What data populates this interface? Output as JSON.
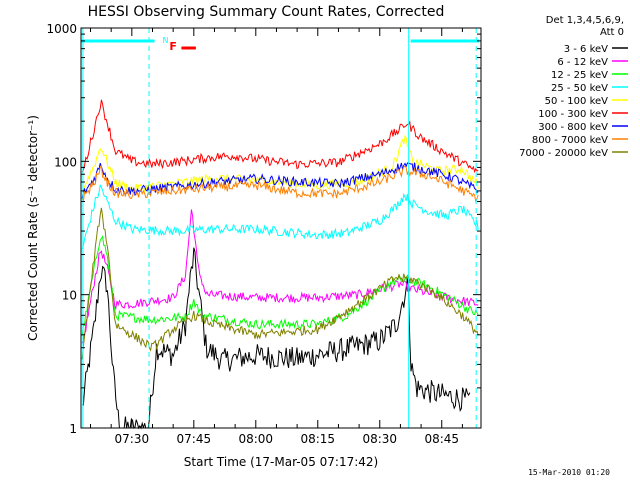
{
  "chart_data": {
    "type": "line",
    "title": "HESSI Observing Summary Count Rates, Corrected",
    "xlabel": "Start Time (17-Mar-05 07:17:42)",
    "ylabel": "Corrected Count Rate (s⁻¹ detector⁻¹)",
    "y_scale": "log",
    "ylim": [
      1,
      1000
    ],
    "xlim": [
      "07:17:42",
      "08:54:30"
    ],
    "x_ticks": [
      "07:30",
      "07:45",
      "08:00",
      "08:15",
      "08:30",
      "08:45"
    ],
    "y_ticks": [
      "1",
      "10",
      "100",
      "1000"
    ],
    "legend_header": [
      "Det 1,3,4,5,6,9,",
      "Att 0"
    ],
    "legend_position": "top-right, outside plot",
    "flags": [
      {
        "label": "N",
        "color": "#00ffff",
        "intervals": [
          [
            "07:17:42",
            "07:35:30"
          ],
          [
            "08:37:30",
            "08:54:00"
          ]
        ]
      },
      {
        "label": "F",
        "color": "#ff0000",
        "intervals": [
          [
            "07:42:00",
            "07:45:30"
          ]
        ]
      }
    ],
    "vertical_markers": [
      {
        "time": "07:18:10",
        "style": "solid",
        "color": "#00ffff"
      },
      {
        "time": "07:34:10",
        "style": "dashed",
        "color": "#00ffff"
      },
      {
        "time": "08:37:00",
        "style": "solid",
        "color": "#00ffff"
      },
      {
        "time": "08:53:20",
        "style": "dashed",
        "color": "#00ffff"
      }
    ],
    "series": [
      {
        "name": "3 - 6 keV",
        "color": "#000000",
        "points": [
          [
            "07:18:00",
            1.4
          ],
          [
            "07:21:00",
            6
          ],
          [
            "07:22:30",
            15.5
          ],
          [
            "07:24:00",
            12
          ],
          [
            "07:25:30",
            2.5
          ],
          [
            "07:27:00",
            1
          ],
          [
            "07:34:00",
            1
          ],
          [
            "07:36:00",
            4
          ],
          [
            "07:40:00",
            3.5
          ],
          [
            "07:43:00",
            6
          ],
          [
            "07:44:00",
            12
          ],
          [
            "07:45:00",
            20
          ],
          [
            "07:46:30",
            9
          ],
          [
            "07:48:00",
            4
          ],
          [
            "07:52:00",
            3.2
          ],
          [
            "08:00:00",
            3.5
          ],
          [
            "08:10:00",
            3.3
          ],
          [
            "08:20:00",
            3.8
          ],
          [
            "08:30:00",
            4.5
          ],
          [
            "08:34:00",
            6
          ],
          [
            "08:36:00",
            10
          ],
          [
            "08:37:00",
            12
          ],
          [
            "08:37:30",
            3
          ],
          [
            "08:39:00",
            2
          ],
          [
            "08:44:00",
            1.8
          ],
          [
            "08:52:00",
            1.6
          ]
        ]
      },
      {
        "name": "6 - 12 keV",
        "color": "#ff00ff",
        "points": [
          [
            "07:18:00",
            4
          ],
          [
            "07:21:00",
            13
          ],
          [
            "07:22:30",
            22
          ],
          [
            "07:24:00",
            16
          ],
          [
            "07:26:00",
            8.5
          ],
          [
            "07:30:00",
            8.5
          ],
          [
            "07:35:00",
            9
          ],
          [
            "07:40:00",
            9.5
          ],
          [
            "07:43:00",
            14
          ],
          [
            "07:44:30",
            45
          ],
          [
            "07:46:00",
            16
          ],
          [
            "07:48:00",
            10
          ],
          [
            "08:00:00",
            9.5
          ],
          [
            "08:15:00",
            9.5
          ],
          [
            "08:25:00",
            10
          ],
          [
            "08:30:00",
            11
          ],
          [
            "08:35:00",
            12
          ],
          [
            "08:38:00",
            11
          ],
          [
            "08:43:00",
            10
          ],
          [
            "08:50:00",
            9
          ],
          [
            "08:54:00",
            8.5
          ]
        ]
      },
      {
        "name": "12 - 25 keV",
        "color": "#00ff00",
        "points": [
          [
            "07:18:00",
            5
          ],
          [
            "07:21:00",
            16
          ],
          [
            "07:22:30",
            29
          ],
          [
            "07:24:00",
            20
          ],
          [
            "07:26:00",
            7
          ],
          [
            "07:35:00",
            6.5
          ],
          [
            "07:43:00",
            6.8
          ],
          [
            "07:45:00",
            9
          ],
          [
            "07:47:00",
            7
          ],
          [
            "08:00:00",
            6
          ],
          [
            "08:15:00",
            6
          ],
          [
            "08:22:00",
            7
          ],
          [
            "08:28:00",
            9.5
          ],
          [
            "08:33:00",
            12.5
          ],
          [
            "08:37:00",
            13
          ],
          [
            "08:42:00",
            11.5
          ],
          [
            "08:48:00",
            9
          ],
          [
            "08:54:00",
            7
          ]
        ]
      },
      {
        "name": "25 - 50 keV",
        "color": "#00ffff",
        "points": [
          [
            "07:18:00",
            22
          ],
          [
            "07:21:00",
            48
          ],
          [
            "07:22:30",
            65
          ],
          [
            "07:24:00",
            50
          ],
          [
            "07:26:00",
            36
          ],
          [
            "07:30:00",
            31
          ],
          [
            "07:40:00",
            30
          ],
          [
            "07:50:00",
            31
          ],
          [
            "08:00:00",
            31
          ],
          [
            "08:15:00",
            28
          ],
          [
            "08:22:00",
            29
          ],
          [
            "08:30:00",
            36
          ],
          [
            "08:34:00",
            46
          ],
          [
            "08:36:00",
            56
          ],
          [
            "08:38:00",
            48
          ],
          [
            "08:42:00",
            42
          ],
          [
            "08:46:00",
            39
          ],
          [
            "08:50:00",
            44
          ],
          [
            "08:54:00",
            32
          ]
        ]
      },
      {
        "name": "50 - 100 keV",
        "color": "#ffff00",
        "points": [
          [
            "07:18:00",
            60
          ],
          [
            "07:21:00",
            95
          ],
          [
            "07:22:30",
            130
          ],
          [
            "07:24:00",
            100
          ],
          [
            "07:26:00",
            70
          ],
          [
            "07:30:00",
            62
          ],
          [
            "07:40:00",
            68
          ],
          [
            "07:50:00",
            75
          ],
          [
            "08:00:00",
            72
          ],
          [
            "08:15:00",
            66
          ],
          [
            "08:25:00",
            70
          ],
          [
            "08:33:00",
            90
          ],
          [
            "08:36:00",
            150
          ],
          [
            "08:38:00",
            100
          ],
          [
            "08:44:00",
            85
          ],
          [
            "08:50:00",
            88
          ],
          [
            "08:54:00",
            65
          ]
        ]
      },
      {
        "name": "100 - 300 keV",
        "color": "#ff0000",
        "points": [
          [
            "07:18:00",
            80
          ],
          [
            "07:21:00",
            180
          ],
          [
            "07:22:30",
            280
          ],
          [
            "07:24:00",
            200
          ],
          [
            "07:26:00",
            120
          ],
          [
            "07:30:00",
            100
          ],
          [
            "07:35:00",
            95
          ],
          [
            "07:42:00",
            100
          ],
          [
            "07:50:00",
            108
          ],
          [
            "07:55:00",
            110
          ],
          [
            "08:00:00",
            104
          ],
          [
            "08:10:00",
            95
          ],
          [
            "08:20:00",
            98
          ],
          [
            "08:30:00",
            135
          ],
          [
            "08:35:00",
            175
          ],
          [
            "08:36:30",
            195
          ],
          [
            "08:40:00",
            150
          ],
          [
            "08:46:00",
            115
          ],
          [
            "08:54:00",
            82
          ]
        ]
      },
      {
        "name": "300 - 800 keV",
        "color": "#0000ff",
        "points": [
          [
            "07:18:00",
            55
          ],
          [
            "07:21:00",
            75
          ],
          [
            "07:22:30",
            95
          ],
          [
            "07:24:00",
            75
          ],
          [
            "07:26:00",
            62
          ],
          [
            "07:30:00",
            60
          ],
          [
            "07:40:00",
            64
          ],
          [
            "07:50:00",
            70
          ],
          [
            "08:00:00",
            74
          ],
          [
            "08:10:00",
            70
          ],
          [
            "08:20:00",
            68
          ],
          [
            "08:30:00",
            80
          ],
          [
            "08:36:00",
            94
          ],
          [
            "08:42:00",
            85
          ],
          [
            "08:48:00",
            75
          ],
          [
            "08:54:00",
            60
          ]
        ]
      },
      {
        "name": "800 - 7000 keV",
        "color": "#ff8000",
        "points": [
          [
            "07:18:00",
            52
          ],
          [
            "07:21:00",
            70
          ],
          [
            "07:22:30",
            88
          ],
          [
            "07:24:00",
            70
          ],
          [
            "07:26:00",
            58
          ],
          [
            "07:30:00",
            56
          ],
          [
            "07:40:00",
            60
          ],
          [
            "07:50:00",
            64
          ],
          [
            "08:00:00",
            66
          ],
          [
            "08:10:00",
            58
          ],
          [
            "08:20:00",
            57
          ],
          [
            "08:30:00",
            70
          ],
          [
            "08:36:00",
            85
          ],
          [
            "08:42:00",
            78
          ],
          [
            "08:48:00",
            65
          ],
          [
            "08:54:00",
            52
          ]
        ]
      },
      {
        "name": "7000 - 20000 keV",
        "color": "#808000",
        "points": [
          [
            "07:18:00",
            3.5
          ],
          [
            "07:21:00",
            20
          ],
          [
            "07:22:30",
            44
          ],
          [
            "07:24:00",
            25
          ],
          [
            "07:26:00",
            6
          ],
          [
            "07:35:00",
            4
          ],
          [
            "07:40:00",
            5.5
          ],
          [
            "07:45:00",
            7
          ],
          [
            "07:50:00",
            6
          ],
          [
            "08:00:00",
            5
          ],
          [
            "08:15:00",
            5.5
          ],
          [
            "08:22:00",
            7.5
          ],
          [
            "08:28:00",
            10
          ],
          [
            "08:34:00",
            13.5
          ],
          [
            "08:38:00",
            13
          ],
          [
            "08:44:00",
            10
          ],
          [
            "08:50:00",
            7
          ],
          [
            "08:54:00",
            5
          ]
        ]
      }
    ]
  },
  "footer_timestamp": "15-Mar-2010 01:20"
}
